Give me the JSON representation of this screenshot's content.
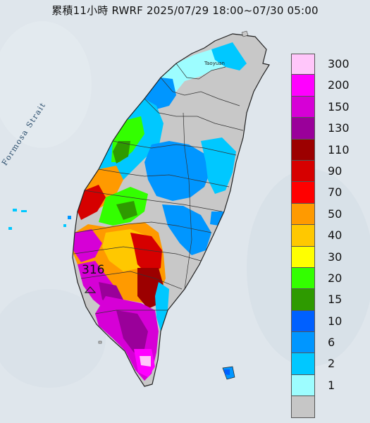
{
  "title": "累積11小時 RWRF 2025/07/29 18:00~07/30 05:00",
  "map_labels": {
    "strait": "Formosa Strait",
    "city": "Taoyuan",
    "max_value": "316"
  },
  "legend": [
    {
      "label": "300",
      "color": "#ffc6fa"
    },
    {
      "label": "200",
      "color": "#ff00ff"
    },
    {
      "label": "150",
      "color": "#d600d6"
    },
    {
      "label": "130",
      "color": "#9a009a"
    },
    {
      "label": "110",
      "color": "#9c0000"
    },
    {
      "label": "90",
      "color": "#d60000"
    },
    {
      "label": "70",
      "color": "#ff0000"
    },
    {
      "label": "50",
      "color": "#ff9a00"
    },
    {
      "label": "40",
      "color": "#ffc800"
    },
    {
      "label": "30",
      "color": "#ffff00"
    },
    {
      "label": "20",
      "color": "#33ff00"
    },
    {
      "label": "15",
      "color": "#2e9a00"
    },
    {
      "label": "10",
      "color": "#0060ff"
    },
    {
      "label": "6",
      "color": "#0096ff"
    },
    {
      "label": "2",
      "color": "#00c8ff"
    },
    {
      "label": "1",
      "color": "#9dfdff"
    },
    {
      "label": "",
      "color": "#c6c6c6"
    }
  ],
  "colors": {
    "ocean": "#dfe6ec",
    "land_dry": "#c8c8c8"
  }
}
